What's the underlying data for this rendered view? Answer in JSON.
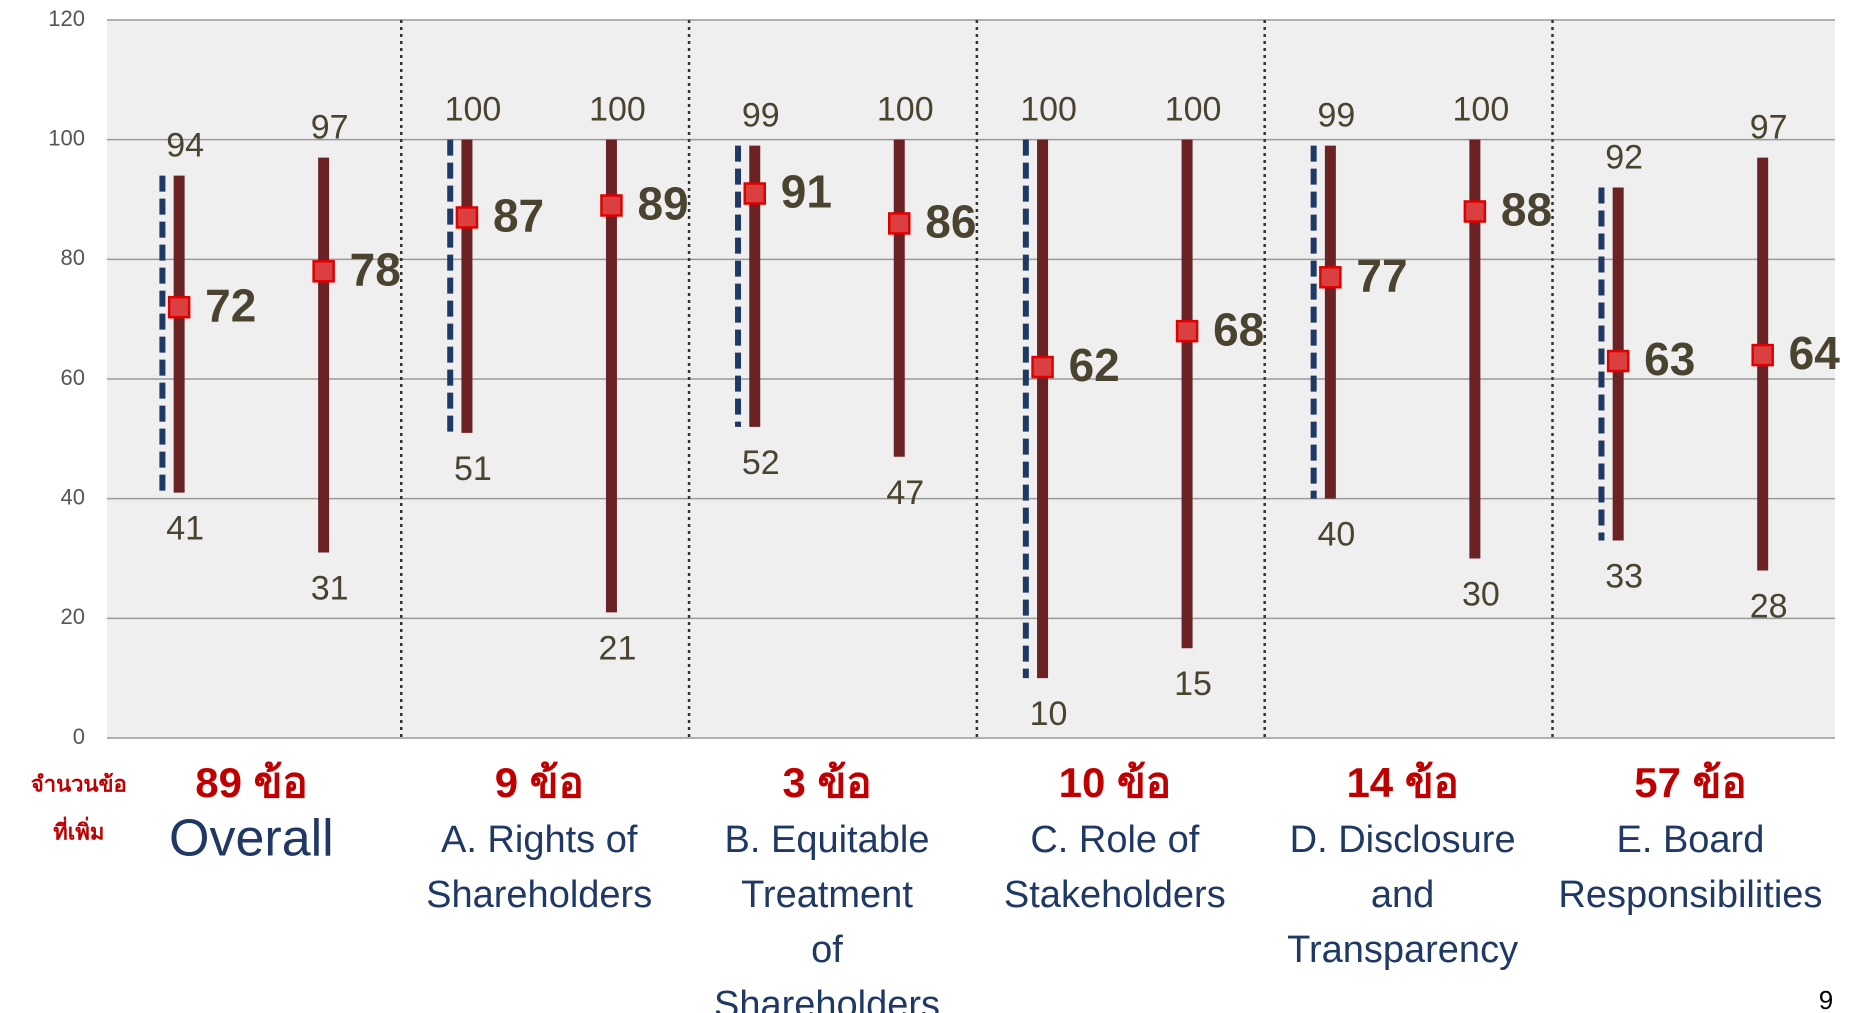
{
  "chart_data": {
    "type": "range",
    "ylim": [
      0,
      120
    ],
    "yticks": [
      0,
      20,
      40,
      60,
      80,
      100,
      120
    ],
    "grid": true,
    "row_label": [
      "จำนวนข้อ",
      "ที่เพิ่ม"
    ],
    "counts": [
      "89 ข้อ",
      "9 ข้อ",
      "3 ข้อ",
      "10 ข้อ",
      "14 ข้อ",
      "57 ข้อ"
    ],
    "categories": [
      [
        "Overall"
      ],
      [
        "A. Rights of",
        "Shareholders"
      ],
      [
        "B. Equitable",
        "Treatment",
        "of",
        "Shareholders"
      ],
      [
        "C. Role of",
        "Stakeholders"
      ],
      [
        "D. Disclosure",
        "and",
        "Transparency"
      ],
      [
        "E. Board",
        "Responsibilities"
      ]
    ],
    "series": [
      {
        "color": "#6b2225",
        "marker_color": "#d9403f",
        "dashed": true,
        "high": [
          94,
          100,
          99,
          100,
          99,
          92
        ],
        "low": [
          41,
          51,
          52,
          10,
          40,
          33
        ],
        "mean": [
          72,
          87,
          91,
          62,
          77,
          63
        ]
      },
      {
        "color": "#6b2225",
        "marker_color": "#d9403f",
        "dashed": false,
        "high": [
          97,
          100,
          100,
          100,
          100,
          97
        ],
        "low": [
          31,
          21,
          47,
          15,
          30,
          28
        ],
        "mean": [
          78,
          89,
          86,
          68,
          88,
          64
        ]
      }
    ],
    "page_number": "9"
  }
}
